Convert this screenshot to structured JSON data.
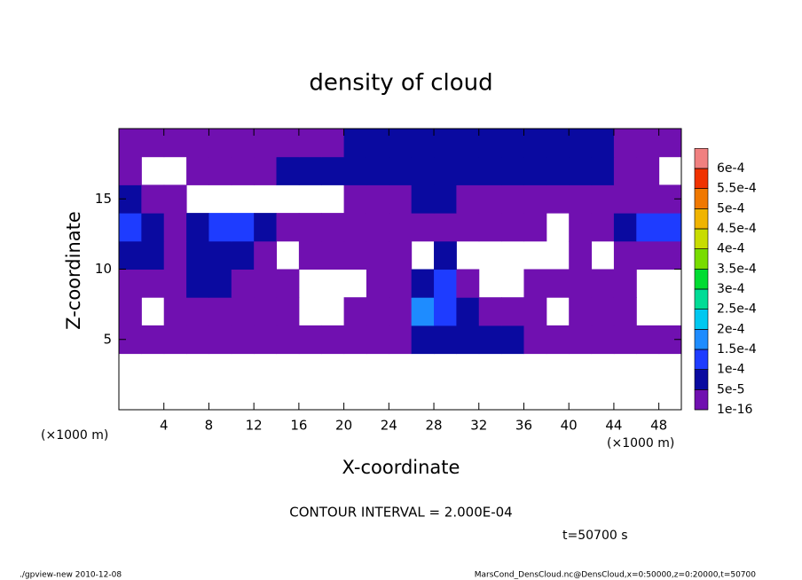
{
  "chart_data": {
    "type": "contour",
    "title": "density of cloud",
    "x_label": "X-coordinate",
    "y_label": "Z-coordinate",
    "x_unit_label": "(×1000 m)",
    "contour_interval": "CONTOUR INTERVAL = 2.000E-04",
    "time_label": "t=50700 s",
    "footer_left": "./gpview-new  2010-12-08",
    "footer_right": "MarsCond_DensCloud.nc@DensCloud,x=0:50000,z=0:20000,t=50700",
    "xlim": [
      0,
      50
    ],
    "ylim": [
      0,
      20
    ],
    "xticks": [
      4,
      8,
      12,
      16,
      20,
      24,
      28,
      32,
      36,
      40,
      44,
      48
    ],
    "yticks": [
      5,
      10,
      15
    ],
    "x_edges": [
      0,
      2,
      4,
      6,
      8,
      10,
      12,
      14,
      16,
      18,
      20,
      22,
      24,
      26,
      28,
      30,
      32,
      34,
      36,
      38,
      40,
      42,
      44,
      46,
      48,
      50
    ],
    "y_edges": [
      0,
      2,
      4,
      6,
      8,
      10,
      12,
      14,
      16,
      18,
      20
    ],
    "values": [
      [
        0,
        0,
        0,
        0,
        0,
        0,
        0,
        0,
        0,
        0,
        0,
        0,
        0,
        0,
        0,
        0,
        0,
        0,
        0,
        0,
        0,
        0,
        0,
        0,
        0
      ],
      [
        0,
        0,
        0,
        0,
        0,
        0,
        0,
        0,
        0,
        0,
        0,
        0,
        0,
        0,
        0,
        0,
        0,
        0,
        0,
        0,
        0,
        0,
        0,
        0,
        0
      ],
      [
        2e-05,
        2e-05,
        2e-05,
        2e-05,
        2e-05,
        2e-05,
        2e-05,
        2e-05,
        2e-05,
        2e-05,
        2e-05,
        2e-05,
        2e-05,
        6e-05,
        6e-05,
        6e-05,
        6e-05,
        6e-05,
        2e-05,
        2e-05,
        2e-05,
        2e-05,
        2e-05,
        2e-05,
        2e-05
      ],
      [
        2e-05,
        0,
        2e-05,
        2e-05,
        2e-05,
        2e-05,
        2e-05,
        2e-05,
        0,
        0,
        2e-05,
        2e-05,
        2e-05,
        0.00016,
        0.00011,
        6e-05,
        2e-05,
        2e-05,
        2e-05,
        0,
        2e-05,
        2e-05,
        2e-05,
        0,
        0
      ],
      [
        2e-05,
        2e-05,
        2e-05,
        6e-05,
        6e-05,
        2e-05,
        2e-05,
        2e-05,
        0,
        0,
        0,
        2e-05,
        2e-05,
        6e-05,
        0.00011,
        2e-05,
        0,
        0,
        2e-05,
        2e-05,
        2e-05,
        2e-05,
        2e-05,
        0,
        0
      ],
      [
        6e-05,
        6e-05,
        2e-05,
        6e-05,
        6e-05,
        6e-05,
        2e-05,
        0,
        2e-05,
        2e-05,
        2e-05,
        2e-05,
        2e-05,
        0,
        6e-05,
        0,
        0,
        0,
        0,
        0,
        2e-05,
        0,
        2e-05,
        2e-05,
        2e-05
      ],
      [
        0.00011,
        6e-05,
        2e-05,
        6e-05,
        0.00011,
        0.00011,
        6e-05,
        2e-05,
        2e-05,
        2e-05,
        2e-05,
        2e-05,
        2e-05,
        2e-05,
        2e-05,
        2e-05,
        2e-05,
        2e-05,
        2e-05,
        0,
        2e-05,
        2e-05,
        6e-05,
        0.00011,
        0.00011
      ],
      [
        6e-05,
        2e-05,
        2e-05,
        0,
        0,
        0,
        0,
        0,
        0,
        0,
        2e-05,
        2e-05,
        2e-05,
        6e-05,
        6e-05,
        2e-05,
        2e-05,
        2e-05,
        2e-05,
        2e-05,
        2e-05,
        2e-05,
        2e-05,
        2e-05,
        2e-05
      ],
      [
        2e-05,
        0,
        0,
        2e-05,
        2e-05,
        2e-05,
        2e-05,
        6e-05,
        6e-05,
        6e-05,
        6e-05,
        6e-05,
        6e-05,
        6e-05,
        6e-05,
        6e-05,
        6e-05,
        6e-05,
        6e-05,
        6e-05,
        6e-05,
        6e-05,
        2e-05,
        2e-05,
        0
      ],
      [
        2e-05,
        2e-05,
        2e-05,
        2e-05,
        2e-05,
        2e-05,
        2e-05,
        2e-05,
        2e-05,
        2e-05,
        6e-05,
        6e-05,
        6e-05,
        6e-05,
        6e-05,
        6e-05,
        6e-05,
        6e-05,
        6e-05,
        6e-05,
        6e-05,
        6e-05,
        2e-05,
        2e-05,
        2e-05
      ]
    ],
    "levels": [
      {
        "value": 1e-16,
        "label": "1e-16"
      },
      {
        "value": 5e-05,
        "label": "5e-5"
      },
      {
        "value": 0.0001,
        "label": "1e-4"
      },
      {
        "value": 0.00015,
        "label": "1.5e-4"
      },
      {
        "value": 0.0002,
        "label": "2e-4"
      },
      {
        "value": 0.00025,
        "label": "2.5e-4"
      },
      {
        "value": 0.0003,
        "label": "3e-4"
      },
      {
        "value": 0.00035,
        "label": "3.5e-4"
      },
      {
        "value": 0.0004,
        "label": "4e-4"
      },
      {
        "value": 0.00045,
        "label": "4.5e-4"
      },
      {
        "value": 0.0005,
        "label": "5e-4"
      },
      {
        "value": 0.00055,
        "label": "5.5e-4"
      },
      {
        "value": 0.0006,
        "label": "6e-4"
      }
    ],
    "level_colors": [
      "#7010b0",
      "#0a0aa0",
      "#1e3cff",
      "#1e8cff",
      "#00c8f0",
      "#00dc96",
      "#00dc32",
      "#78dc00",
      "#c8dc00",
      "#f0b400",
      "#f07800",
      "#f03200",
      "#f08080"
    ]
  }
}
